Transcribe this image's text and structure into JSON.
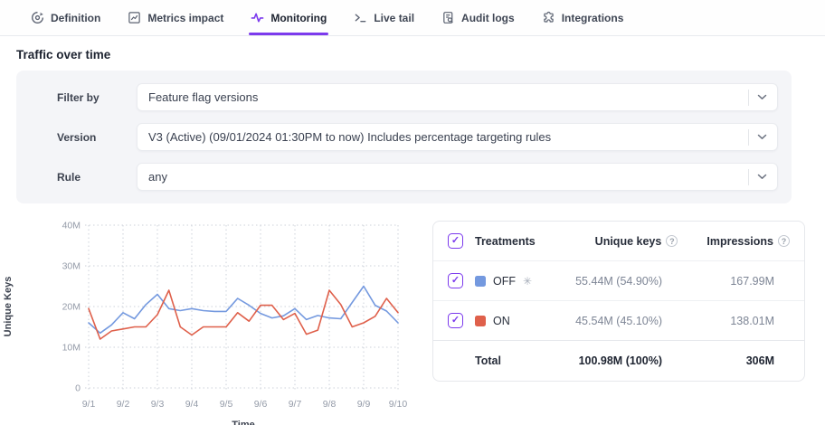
{
  "colors": {
    "accent": "#7C3AED",
    "off_series_blue": "#7499DF",
    "on_series_red": "#DF604B"
  },
  "tabs": {
    "items": [
      {
        "label": "Definition",
        "icon": "definition-icon",
        "active": false
      },
      {
        "label": "Metrics impact",
        "icon": "metrics-chart-icon",
        "active": false
      },
      {
        "label": "Monitoring",
        "icon": "pulse-icon",
        "active": true
      },
      {
        "label": "Live tail",
        "icon": "terminal-icon",
        "active": false
      },
      {
        "label": "Audit logs",
        "icon": "document-search-icon",
        "active": false
      },
      {
        "label": "Integrations",
        "icon": "puzzle-icon",
        "active": false
      }
    ]
  },
  "section": {
    "title": "Traffic over time"
  },
  "filters": {
    "rows": [
      {
        "label": "Filter by",
        "value": "Feature flag versions"
      },
      {
        "label": "Version",
        "value": "V3 (Active) (09/01/2024 01:30PM to now) Includes percentage targeting rules"
      },
      {
        "label": "Rule",
        "value": "any"
      }
    ]
  },
  "chart_data": {
    "type": "line",
    "title": "Traffic over time",
    "xlabel": "Time",
    "ylabel": "Unique Keys",
    "unit": "millions",
    "ylim": [
      0,
      40
    ],
    "y_ticks": [
      "0",
      "10M",
      "20M",
      "30M",
      "40M"
    ],
    "x_tick_labels": [
      "9/1",
      "9/2",
      "9/3",
      "9/4",
      "9/5",
      "9/6",
      "9/7",
      "9/8",
      "9/9",
      "9/10"
    ],
    "points_per_day": 3,
    "grid": "dotted",
    "series": [
      {
        "name": "OFF",
        "color": "#7499DF",
        "values_millions": [
          16,
          13.5,
          15.5,
          18.5,
          17,
          20.5,
          23,
          19.5,
          19,
          19.5,
          19,
          18.8,
          18.8,
          22,
          20.3,
          18.3,
          17.2,
          17.7,
          19.5,
          16.8,
          17.8,
          17.2,
          17,
          21,
          25,
          20.3,
          18.9,
          16
        ]
      },
      {
        "name": "ON",
        "color": "#DF604B",
        "values_millions": [
          19.5,
          12,
          14,
          14.5,
          15,
          15,
          18,
          24,
          15,
          13,
          15,
          15,
          15,
          18.5,
          16.4,
          20.3,
          20.3,
          16.8,
          18.3,
          13.2,
          14.2,
          24,
          20.5,
          15,
          16,
          17.6,
          22,
          18.5
        ]
      }
    ]
  },
  "treatments_table": {
    "headers": {
      "treatments": "Treatments",
      "unique_keys": "Unique keys",
      "impressions": "Impressions"
    },
    "rows": [
      {
        "treatment": "OFF",
        "color": "#7499DF",
        "is_default": true,
        "checked": true,
        "unique_keys": "55.44M (54.90%)",
        "impressions": "167.99M"
      },
      {
        "treatment": "ON",
        "color": "#DF604B",
        "is_default": false,
        "checked": true,
        "unique_keys": "45.54M (45.10%)",
        "impressions": "138.01M"
      }
    ],
    "total": {
      "label": "Total",
      "unique_keys": "100.98M (100%)",
      "impressions": "306M"
    }
  }
}
